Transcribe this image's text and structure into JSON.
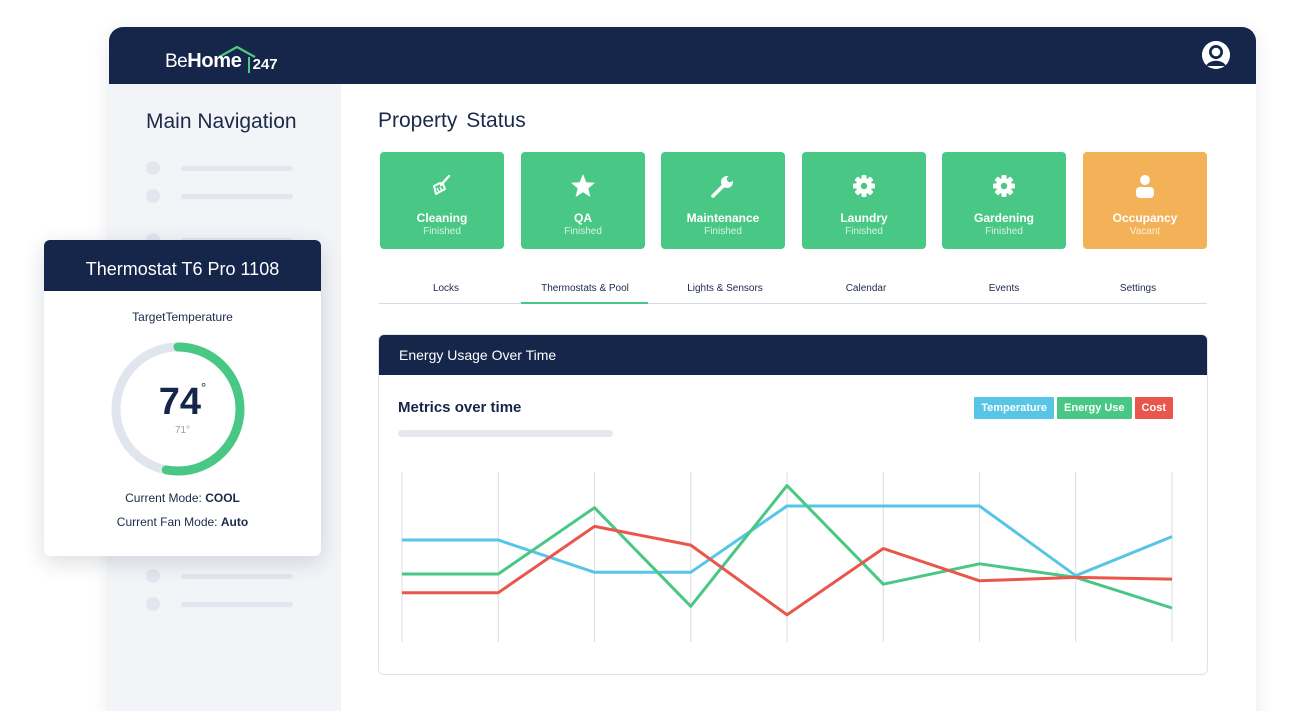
{
  "brand": {
    "be": "Be",
    "home": "Home",
    "suffix": "247"
  },
  "header": {
    "avatar_icon": "user-circle-icon"
  },
  "sidebar": {
    "title": "Main Navigation"
  },
  "main": {
    "title": "Property Status",
    "status_cards": [
      {
        "label": "Cleaning",
        "status": "Finished",
        "icon": "broom-icon",
        "color": "#48c884"
      },
      {
        "label": "QA",
        "status": "Finished",
        "icon": "star-icon",
        "color": "#48c884"
      },
      {
        "label": "Maintenance",
        "status": "Finished",
        "icon": "wrench-icon",
        "color": "#48c884"
      },
      {
        "label": "Laundry",
        "status": "Finished",
        "icon": "gear-icon",
        "color": "#48c884"
      },
      {
        "label": "Gardening",
        "status": "Finished",
        "icon": "gear-icon",
        "color": "#48c884"
      },
      {
        "label": "Occupancy",
        "status": "Vacant",
        "icon": "person-icon",
        "color": "#f3b257"
      }
    ],
    "tabs": [
      {
        "label": "Locks"
      },
      {
        "label": "Thermostats & Pool",
        "active": true
      },
      {
        "label": "Lights & Sensors"
      },
      {
        "label": "Calendar"
      },
      {
        "label": "Events"
      },
      {
        "label": "Settings"
      }
    ]
  },
  "energy_panel": {
    "header": "Energy Usage Over Time",
    "subtitle": "Metrics over time",
    "legend": [
      {
        "label": "Temperature",
        "color": "#57c6e6"
      },
      {
        "label": "Energy Use",
        "color": "#48c884"
      },
      {
        "label": "Cost",
        "color": "#e9564b"
      }
    ]
  },
  "chart_data": {
    "type": "line",
    "grid": "vertical",
    "legend_position": "top-right",
    "x_count": 9,
    "ylim": [
      0,
      100
    ],
    "series": [
      {
        "name": "Temperature",
        "color": "#57c6e6",
        "values": [
          60,
          60,
          41,
          41,
          80,
          80,
          80,
          39,
          62
        ]
      },
      {
        "name": "Energy Use",
        "color": "#48c884",
        "values": [
          40,
          40,
          79,
          21,
          92,
          34,
          46,
          38,
          20
        ]
      },
      {
        "name": "Cost",
        "color": "#e9564b",
        "values": [
          29,
          29,
          68,
          57,
          16,
          55,
          36,
          38,
          37
        ]
      }
    ]
  },
  "thermostat": {
    "title": "Thermostat T6 Pro 1108",
    "target_label": "TargetTemperature",
    "current_temp": "74",
    "degree": "°",
    "set_temp": "71°",
    "dial_fraction": 0.53,
    "mode_label": "Current Mode:",
    "mode_value": "COOL",
    "fan_label": "Current Fan Mode:",
    "fan_value": "Auto"
  }
}
